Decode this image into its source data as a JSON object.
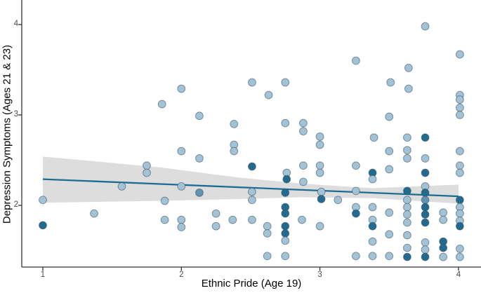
{
  "figure": {
    "kind": "ggplot-style scatter plot with linear fit and confidence band",
    "background": "#ffffff"
  },
  "axes": {
    "xlabel": "Ethnic Pride (Age 19)",
    "ylabel": "Depression Symptoms (Ages 21 & 23)",
    "tick_color": "#4d4d4d",
    "spine_color": "#333333"
  },
  "chart_data": {
    "type": "scatter",
    "title": "",
    "xlabel": "Ethnic Pride (Age 19)",
    "ylabel": "Depression Symptoms (Ages 21 & 23)",
    "xlim": [
      0.85,
      4.16
    ],
    "ylim": [
      1.32,
      4.27
    ],
    "xticks": [
      1,
      2,
      3,
      4
    ],
    "yticks": [
      2,
      3,
      4
    ],
    "grid": false,
    "legend": false,
    "regression_line": {
      "x": [
        1.0,
        4.0
      ],
      "y": [
        2.29,
        2.1
      ],
      "color": "#1b6d93",
      "width": 2.3
    },
    "ci_band": {
      "x": [
        1.0,
        1.85,
        2.4,
        2.87,
        3.38,
        4.0
      ],
      "top": [
        2.54,
        2.42,
        2.31,
        2.24,
        2.19,
        2.23
      ],
      "bottom": [
        2.03,
        2.05,
        2.07,
        2.09,
        2.08,
        2.02
      ],
      "color": "#d9d9d9",
      "opacity": 0.9
    },
    "point_style": {
      "radius": 5.4,
      "stroke": "#3c4c58",
      "stroke_opacity": 0.55,
      "colors": {
        "l": "#a2c3d7",
        "m": "#6094b3",
        "d": "#226b90"
      }
    },
    "points": [
      [
        1.0,
        2.06,
        "l"
      ],
      [
        1.0,
        1.78,
        "d"
      ],
      [
        1.37,
        1.91,
        "l"
      ],
      [
        1.57,
        2.21,
        "l"
      ],
      [
        1.75,
        2.44,
        "l"
      ],
      [
        1.75,
        2.36,
        "l"
      ],
      [
        1.86,
        3.12,
        "l"
      ],
      [
        1.88,
        2.05,
        "l"
      ],
      [
        1.88,
        1.84,
        "l"
      ],
      [
        2.0,
        3.29,
        "l"
      ],
      [
        2.0,
        2.6,
        "l"
      ],
      [
        2.0,
        2.21,
        "l"
      ],
      [
        2.0,
        1.84,
        "l"
      ],
      [
        2.0,
        1.76,
        "l"
      ],
      [
        2.13,
        2.99,
        "l"
      ],
      [
        2.13,
        2.52,
        "l"
      ],
      [
        2.13,
        2.14,
        "m"
      ],
      [
        2.25,
        1.91,
        "l"
      ],
      [
        2.25,
        1.77,
        "l"
      ],
      [
        2.38,
        2.9,
        "l"
      ],
      [
        2.38,
        2.67,
        "l"
      ],
      [
        2.38,
        2.6,
        "l"
      ],
      [
        2.37,
        1.84,
        "l"
      ],
      [
        2.51,
        3.36,
        "l"
      ],
      [
        2.51,
        2.43,
        "d"
      ],
      [
        2.51,
        2.15,
        "l"
      ],
      [
        2.51,
        2.06,
        "l"
      ],
      [
        2.51,
        1.84,
        "l"
      ],
      [
        2.63,
        3.22,
        "l"
      ],
      [
        2.62,
        1.77,
        "l"
      ],
      [
        2.62,
        1.69,
        "l"
      ],
      [
        2.62,
        1.44,
        "l"
      ],
      [
        2.75,
        3.36,
        "l"
      ],
      [
        2.75,
        2.91,
        "l"
      ],
      [
        2.76,
        2.36,
        "l"
      ],
      [
        2.76,
        2.29,
        "d"
      ],
      [
        2.75,
        2.14,
        "d"
      ],
      [
        2.75,
        1.98,
        "d"
      ],
      [
        2.75,
        1.91,
        "d"
      ],
      [
        2.75,
        1.77,
        "d"
      ],
      [
        2.75,
        1.69,
        "d"
      ],
      [
        2.75,
        1.61,
        "l"
      ],
      [
        2.75,
        1.44,
        "l"
      ],
      [
        2.88,
        2.91,
        "l"
      ],
      [
        2.88,
        2.82,
        "l"
      ],
      [
        2.88,
        2.44,
        "l"
      ],
      [
        2.88,
        2.26,
        "l"
      ],
      [
        2.87,
        1.84,
        "l"
      ],
      [
        3.0,
        2.76,
        "l"
      ],
      [
        3.0,
        2.67,
        "l"
      ],
      [
        3.0,
        2.44,
        "l"
      ],
      [
        3.0,
        2.36,
        "l"
      ],
      [
        3.01,
        2.15,
        "l"
      ],
      [
        3.01,
        2.07,
        "d"
      ],
      [
        3.0,
        1.77,
        "l"
      ],
      [
        3.13,
        2.06,
        "l"
      ],
      [
        3.26,
        3.6,
        "l"
      ],
      [
        3.26,
        2.44,
        "l"
      ],
      [
        3.26,
        2.16,
        "l"
      ],
      [
        3.26,
        1.98,
        "l"
      ],
      [
        3.26,
        1.91,
        "d"
      ],
      [
        3.26,
        1.44,
        "l"
      ],
      [
        3.39,
        2.75,
        "l"
      ],
      [
        3.38,
        2.36,
        "d"
      ],
      [
        3.38,
        2.29,
        "l"
      ],
      [
        3.38,
        1.98,
        "l"
      ],
      [
        3.38,
        1.84,
        "l"
      ],
      [
        3.38,
        1.77,
        "d"
      ],
      [
        3.38,
        1.6,
        "l"
      ],
      [
        3.38,
        1.44,
        "l"
      ],
      [
        3.51,
        3.36,
        "l"
      ],
      [
        3.5,
        2.98,
        "l"
      ],
      [
        3.5,
        2.6,
        "l"
      ],
      [
        3.5,
        2.4,
        "l"
      ],
      [
        3.5,
        1.92,
        "l"
      ],
      [
        3.5,
        1.68,
        "l"
      ],
      [
        3.5,
        1.44,
        "l"
      ],
      [
        3.64,
        3.52,
        "l"
      ],
      [
        3.64,
        3.29,
        "l"
      ],
      [
        3.63,
        2.75,
        "l"
      ],
      [
        3.63,
        2.61,
        "l"
      ],
      [
        3.63,
        2.52,
        "l"
      ],
      [
        3.63,
        2.16,
        "d"
      ],
      [
        3.63,
        2.06,
        "l"
      ],
      [
        3.63,
        1.98,
        "l"
      ],
      [
        3.63,
        1.9,
        "l"
      ],
      [
        3.63,
        1.81,
        "l"
      ],
      [
        3.63,
        1.67,
        "l"
      ],
      [
        3.63,
        1.53,
        "l"
      ],
      [
        3.63,
        1.43,
        "d"
      ],
      [
        3.76,
        3.98,
        "l"
      ],
      [
        3.76,
        2.75,
        "d"
      ],
      [
        3.76,
        2.52,
        "l"
      ],
      [
        3.76,
        2.36,
        "d"
      ],
      [
        3.76,
        2.21,
        "l"
      ],
      [
        3.76,
        2.14,
        "d"
      ],
      [
        3.76,
        2.06,
        "m"
      ],
      [
        3.76,
        1.98,
        "d"
      ],
      [
        3.76,
        1.9,
        "d"
      ],
      [
        3.76,
        1.81,
        "d"
      ],
      [
        3.76,
        1.59,
        "l"
      ],
      [
        3.76,
        1.51,
        "l"
      ],
      [
        3.76,
        1.43,
        "d"
      ],
      [
        3.89,
        1.92,
        "l"
      ],
      [
        3.89,
        1.84,
        "l"
      ],
      [
        3.89,
        1.6,
        "d"
      ],
      [
        3.89,
        1.53,
        "d"
      ],
      [
        3.89,
        1.43,
        "l"
      ],
      [
        4.01,
        3.67,
        "l"
      ],
      [
        4.01,
        3.22,
        "l"
      ],
      [
        4.01,
        3.17,
        "l"
      ],
      [
        4.01,
        3.08,
        "l"
      ],
      [
        4.01,
        3.0,
        "l"
      ],
      [
        4.01,
        2.6,
        "l"
      ],
      [
        4.01,
        2.44,
        "l"
      ],
      [
        4.01,
        2.36,
        "l"
      ],
      [
        4.01,
        2.06,
        "d"
      ],
      [
        4.01,
        1.98,
        "l"
      ],
      [
        4.01,
        1.91,
        "l"
      ],
      [
        4.01,
        1.83,
        "l"
      ],
      [
        4.01,
        1.77,
        "d"
      ],
      [
        4.01,
        1.52,
        "l"
      ],
      [
        4.01,
        1.43,
        "l"
      ]
    ]
  }
}
